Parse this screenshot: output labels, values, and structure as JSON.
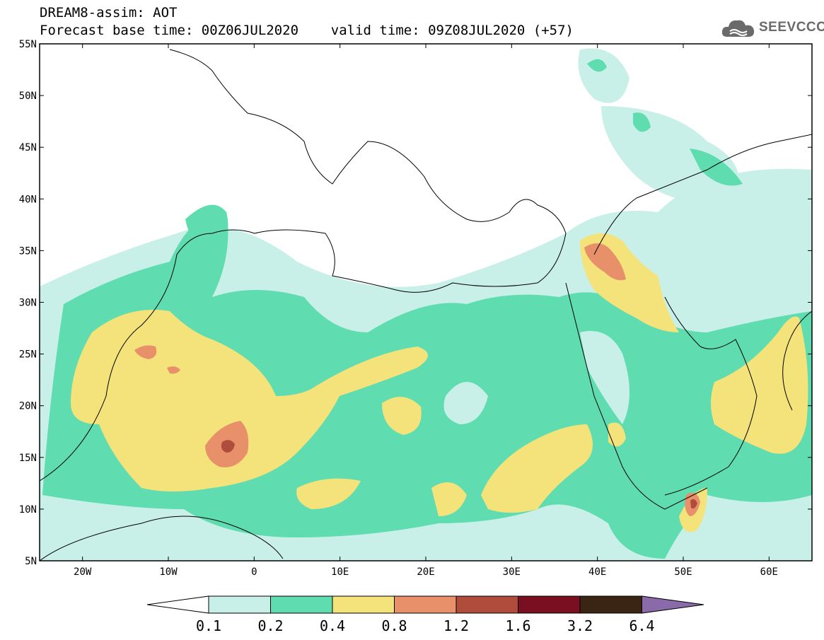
{
  "header": {
    "line1": "DREAM8-assim: AOT",
    "line2": "Forecast base time: 00Z06JUL2020    valid time: 09Z08JUL2020 (+57)"
  },
  "logo": {
    "text": "SEEVCCC",
    "icon": "cloud-icon"
  },
  "map": {
    "lon_range": [
      -25,
      65
    ],
    "lat_range": [
      5,
      55
    ],
    "lat_labels": [
      "55N",
      "50N",
      "45N",
      "40N",
      "35N",
      "30N",
      "25N",
      "20N",
      "15N",
      "10N",
      "5N"
    ],
    "lon_labels": [
      "20W",
      "10W",
      "0",
      "10E",
      "20E",
      "30E",
      "40E",
      "50E",
      "60E"
    ]
  },
  "colorbar": {
    "labels": [
      "0.1",
      "0.2",
      "0.4",
      "0.8",
      "1.2",
      "1.6",
      "3.2",
      "6.4"
    ],
    "colors": [
      "#ffffff",
      "#c9f0e8",
      "#5fdcb0",
      "#f4e27a",
      "#e8906a",
      "#b04c3c",
      "#7a0f22",
      "#3a2414",
      "#8a6aa8"
    ]
  }
}
